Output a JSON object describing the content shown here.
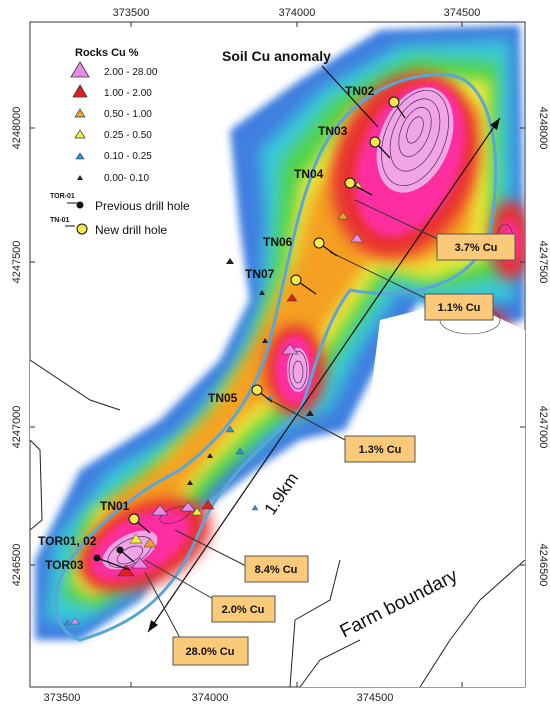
{
  "x_ticks": [
    "373500",
    "374000",
    "374500"
  ],
  "y_ticks": [
    "4248000",
    "4247500",
    "4247000",
    "4246500"
  ],
  "soil_anomaly_label": "Soil Cu anomaly",
  "distance_label": "1.9km",
  "farm_label": "Farm boundary",
  "legend": {
    "title": "Rocks Cu %",
    "classes": [
      {
        "label": "2.00 - 28.00",
        "color": "#e88be8"
      },
      {
        "label": "1.00 - 2.00",
        "color": "#e02020"
      },
      {
        "label": "0.50 - 1.00",
        "color": "#f0a030"
      },
      {
        "label": "0.25 - 0.50",
        "color": "#f0f040"
      },
      {
        "label": "0.10 - 0.25",
        "color": "#2f8fd8"
      },
      {
        "label": "0.00- 0.10",
        "color": "#222222"
      }
    ],
    "previous_tag": "TOR-01",
    "previous_label": "Previous drill hole",
    "new_tag": "TN-01",
    "new_label": "New drill hole"
  },
  "holes": {
    "new": [
      "TN02",
      "TN03",
      "TN04",
      "TN06",
      "TN07",
      "TN05",
      "TN01"
    ],
    "previous": [
      "TOR01, 02",
      "TOR03"
    ]
  },
  "callouts": [
    "3.7% Cu",
    "1.1% Cu",
    "1.3% Cu",
    "8.4% Cu",
    "2.0% Cu",
    "28.0% Cu"
  ],
  "colors": {
    "callout_fill": "#fbc97a",
    "new_hole": "#f7e94a",
    "halo": "#5aa6d8"
  }
}
